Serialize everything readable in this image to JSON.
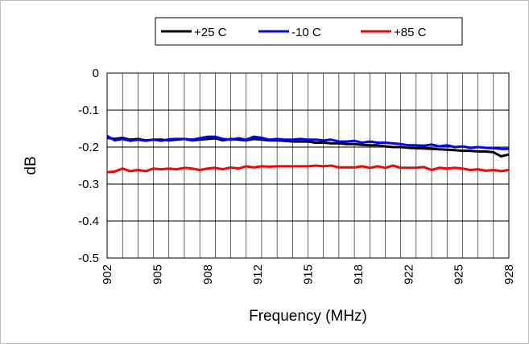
{
  "chart_data": {
    "type": "line",
    "title": "",
    "xlabel": "Frequency (MHz)",
    "ylabel": "dB",
    "xlim": [
      902,
      928
    ],
    "ylim": [
      -0.5,
      0
    ],
    "yticks": [
      0,
      -0.1,
      -0.2,
      -0.3,
      -0.4,
      -0.5
    ],
    "ytick_labels": [
      "0",
      "-0.1",
      "-0.2",
      "-0.3",
      "-0.4",
      "-0.5"
    ],
    "x_tick_labels": [
      "902",
      "905",
      "908",
      "912",
      "915",
      "918",
      "922",
      "925",
      "928"
    ],
    "grid": true,
    "legend_position": "top",
    "series": [
      {
        "name": "+25 C",
        "color": "#000000",
        "x": [
          902,
          902.5,
          903,
          903.5,
          904,
          904.5,
          905,
          905.5,
          906,
          906.5,
          907,
          907.5,
          908,
          908.5,
          909,
          909.5,
          910,
          910.5,
          911,
          911.5,
          912,
          912.5,
          913,
          913.5,
          914,
          914.5,
          915,
          915.5,
          916,
          916.5,
          917,
          917.5,
          918,
          918.5,
          919,
          919.5,
          920,
          920.5,
          921,
          921.5,
          922,
          922.5,
          923,
          923.5,
          924,
          924.5,
          925,
          925.5,
          926,
          926.5,
          927,
          927.5,
          928
        ],
        "y": [
          -0.175,
          -0.178,
          -0.175,
          -0.18,
          -0.178,
          -0.182,
          -0.18,
          -0.18,
          -0.182,
          -0.18,
          -0.178,
          -0.182,
          -0.18,
          -0.178,
          -0.176,
          -0.182,
          -0.178,
          -0.18,
          -0.182,
          -0.178,
          -0.18,
          -0.182,
          -0.182,
          -0.183,
          -0.185,
          -0.185,
          -0.185,
          -0.188,
          -0.188,
          -0.19,
          -0.19,
          -0.192,
          -0.192,
          -0.194,
          -0.195,
          -0.195,
          -0.198,
          -0.2,
          -0.2,
          -0.202,
          -0.203,
          -0.204,
          -0.205,
          -0.206,
          -0.207,
          -0.208,
          -0.21,
          -0.21,
          -0.212,
          -0.212,
          -0.214,
          -0.225,
          -0.22
        ]
      },
      {
        "name": "-10 C",
        "color": "#0000ff",
        "x": [
          902,
          902.5,
          903,
          903.5,
          904,
          904.5,
          905,
          905.5,
          906,
          906.5,
          907,
          907.5,
          908,
          908.5,
          909,
          909.5,
          910,
          910.5,
          911,
          911.5,
          912,
          912.5,
          913,
          913.5,
          914,
          914.5,
          915,
          915.5,
          916,
          916.5,
          917,
          917.5,
          918,
          918.5,
          919,
          919.5,
          920,
          920.5,
          921,
          921.5,
          922,
          922.5,
          923,
          923.5,
          924,
          924.5,
          925,
          925.5,
          926,
          926.5,
          927,
          927.5,
          928
        ],
        "y": [
          -0.17,
          -0.182,
          -0.178,
          -0.183,
          -0.18,
          -0.183,
          -0.18,
          -0.183,
          -0.179,
          -0.178,
          -0.178,
          -0.18,
          -0.176,
          -0.172,
          -0.172,
          -0.178,
          -0.18,
          -0.176,
          -0.18,
          -0.172,
          -0.175,
          -0.18,
          -0.178,
          -0.18,
          -0.18,
          -0.178,
          -0.18,
          -0.18,
          -0.182,
          -0.18,
          -0.185,
          -0.185,
          -0.183,
          -0.188,
          -0.185,
          -0.188,
          -0.188,
          -0.19,
          -0.192,
          -0.195,
          -0.195,
          -0.196,
          -0.193,
          -0.198,
          -0.195,
          -0.2,
          -0.198,
          -0.202,
          -0.2,
          -0.202,
          -0.203,
          -0.205,
          -0.205
        ]
      },
      {
        "name": "+85 C",
        "color": "#ff0000",
        "x": [
          902,
          902.5,
          903,
          903.5,
          904,
          904.5,
          905,
          905.5,
          906,
          906.5,
          907,
          907.5,
          908,
          908.5,
          909,
          909.5,
          910,
          910.5,
          911,
          911.5,
          912,
          912.5,
          913,
          913.5,
          914,
          914.5,
          915,
          915.5,
          916,
          916.5,
          917,
          917.5,
          918,
          918.5,
          919,
          919.5,
          920,
          920.5,
          921,
          921.5,
          922,
          922.5,
          923,
          923.5,
          924,
          924.5,
          925,
          925.5,
          926,
          926.5,
          927,
          927.5,
          928
        ],
        "y": [
          -0.268,
          -0.266,
          -0.258,
          -0.265,
          -0.262,
          -0.265,
          -0.258,
          -0.26,
          -0.258,
          -0.26,
          -0.256,
          -0.258,
          -0.262,
          -0.258,
          -0.256,
          -0.26,
          -0.255,
          -0.258,
          -0.252,
          -0.255,
          -0.252,
          -0.253,
          -0.252,
          -0.252,
          -0.252,
          -0.252,
          -0.252,
          -0.25,
          -0.252,
          -0.25,
          -0.255,
          -0.255,
          -0.255,
          -0.252,
          -0.256,
          -0.252,
          -0.256,
          -0.25,
          -0.256,
          -0.256,
          -0.256,
          -0.254,
          -0.262,
          -0.256,
          -0.258,
          -0.256,
          -0.258,
          -0.262,
          -0.26,
          -0.264,
          -0.262,
          -0.265,
          -0.262
        ]
      }
    ]
  }
}
